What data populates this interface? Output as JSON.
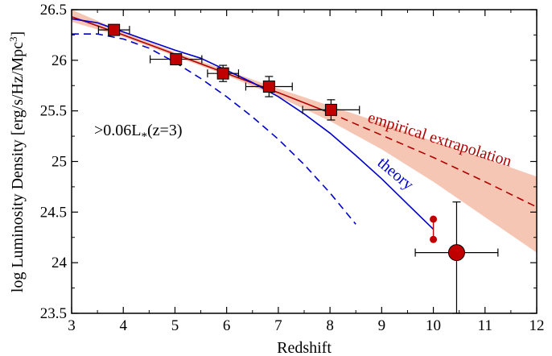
{
  "chart_data": {
    "type": "scatter",
    "xlabel": "Redshift",
    "ylabel_main": "log Luminosity Density [erg/s/Hz/Mpc",
    "ylabel_sup": "3",
    "ylabel_close": "]",
    "xlim": [
      3,
      12
    ],
    "ylim": [
      23.5,
      26.5
    ],
    "xticks": [
      "3",
      "4",
      "5",
      "6",
      "7",
      "8",
      "9",
      "10",
      "11",
      "12"
    ],
    "yticks": [
      "23.5",
      "24",
      "24.5",
      "25",
      "25.5",
      "26",
      "26.5"
    ],
    "xtick_values": [
      3,
      4,
      5,
      6,
      7,
      8,
      9,
      10,
      11,
      12
    ],
    "ytick_values": [
      23.5,
      24,
      24.5,
      25,
      25.5,
      26,
      26.5
    ],
    "grid": false,
    "annotations": {
      "threshold_main": ">0.06L",
      "threshold_sub": "*",
      "threshold_rest": "(z=3)",
      "empirical_label": "empirical extrapolation",
      "theory_label": "theory"
    },
    "colors": {
      "data_fill": "#c00000",
      "empirical": "#b00000",
      "band": "#f6c6b4",
      "theory": "#0000cc"
    },
    "series": [
      {
        "name": "squares",
        "marker": "square",
        "points": [
          {
            "x": 3.82,
            "y": 26.3,
            "xerr": 0.3,
            "yerr": 0.0
          },
          {
            "x": 5.02,
            "y": 26.01,
            "xerr": 0.5,
            "yerr": 0.05
          },
          {
            "x": 5.93,
            "y": 25.87,
            "xerr": 0.3,
            "yerr": 0.08
          },
          {
            "x": 6.82,
            "y": 25.74,
            "xerr": 0.45,
            "yerr": 0.1
          },
          {
            "x": 8.02,
            "y": 25.51,
            "xerr": 0.55,
            "yerr": 0.1
          }
        ]
      },
      {
        "name": "z10-bounds",
        "marker": "small-circle",
        "points": [
          {
            "x": 10.0,
            "y": 24.43
          },
          {
            "x": 10.0,
            "y": 24.23
          }
        ]
      },
      {
        "name": "z10-point",
        "marker": "large-circle",
        "points": [
          {
            "x": 10.45,
            "y": 24.1,
            "xerr_lo": 0.8,
            "xerr_hi": 0.8,
            "yerr_lo": 0.6,
            "yerr_hi": 0.5
          }
        ]
      },
      {
        "name": "empirical",
        "style": "red-line",
        "x": [
          3.0,
          4.0,
          5.0,
          6.0,
          7.0,
          8.0,
          9.0,
          10.0,
          11.0,
          12.0
        ],
        "y": [
          26.43,
          26.25,
          26.06,
          25.87,
          25.68,
          25.48,
          25.26,
          25.04,
          24.8,
          24.55
        ]
      },
      {
        "name": "empirical-band",
        "style": "band",
        "x": [
          3.0,
          4.0,
          5.0,
          6.0,
          7.0,
          8.0,
          9.0,
          10.0,
          11.0,
          12.0
        ],
        "y_low": [
          26.38,
          26.23,
          26.04,
          25.85,
          25.64,
          25.4,
          25.12,
          24.8,
          24.45,
          24.1
        ],
        "y_high": [
          26.5,
          26.28,
          26.08,
          25.9,
          25.72,
          25.55,
          25.38,
          25.2,
          25.03,
          24.85
        ]
      },
      {
        "name": "theory",
        "style": "blue-solid",
        "x": [
          3.0,
          3.5,
          4.0,
          4.5,
          5.0,
          5.5,
          6.0,
          6.5,
          7.0,
          7.5,
          8.0,
          8.5,
          9.0,
          9.5,
          10.0
        ],
        "y": [
          26.41,
          26.37,
          26.28,
          26.19,
          26.1,
          26.02,
          25.9,
          25.78,
          25.64,
          25.47,
          25.28,
          25.06,
          24.83,
          24.58,
          24.33
        ]
      },
      {
        "name": "theory-dashed",
        "style": "blue-dashed",
        "x": [
          3.0,
          3.5,
          4.0,
          4.5,
          5.0,
          5.5,
          6.0,
          6.5,
          7.0,
          7.5,
          8.0,
          8.5
        ],
        "y": [
          26.26,
          26.26,
          26.21,
          26.12,
          25.98,
          25.82,
          25.64,
          25.44,
          25.22,
          24.97,
          24.69,
          24.38
        ]
      }
    ]
  }
}
